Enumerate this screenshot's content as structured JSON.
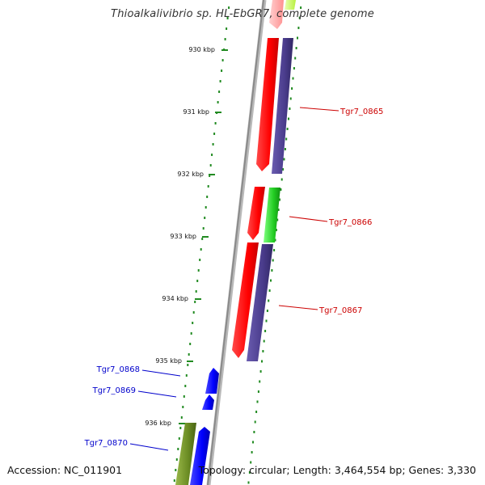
{
  "title": "Thioalkalivibrio sp. HL-EbGR7, complete genome",
  "footer": {
    "accession": "Accession: NC_011901",
    "summary": "Topology: circular; Length: 3,464,554 bp; Genes: 3,330"
  },
  "colors": {
    "red": "#ff0000",
    "dark_blue": "#4a3c8c",
    "green": "#22cc22",
    "blue": "#0000ff",
    "olive": "#6b8c23",
    "label_red": "#cc0000",
    "label_blue": "#0000cc",
    "tick_green": "#228b22",
    "backbone": "#999999"
  },
  "scale": [
    {
      "label": "930 kbp"
    },
    {
      "label": "931 kbp"
    },
    {
      "label": "932 kbp"
    },
    {
      "label": "933 kbp"
    },
    {
      "label": "934 kbp"
    },
    {
      "label": "935 kbp"
    },
    {
      "label": "936 kbp"
    }
  ],
  "gene_labels": [
    {
      "text": "Tgr7_0865",
      "color": "red"
    },
    {
      "text": "Tgr7_0866",
      "color": "red"
    },
    {
      "text": "Tgr7_0867",
      "color": "red"
    },
    {
      "text": "Tgr7_0868",
      "color": "blue"
    },
    {
      "text": "Tgr7_0869",
      "color": "blue"
    },
    {
      "text": "Tgr7_0870",
      "color": "blue"
    }
  ]
}
